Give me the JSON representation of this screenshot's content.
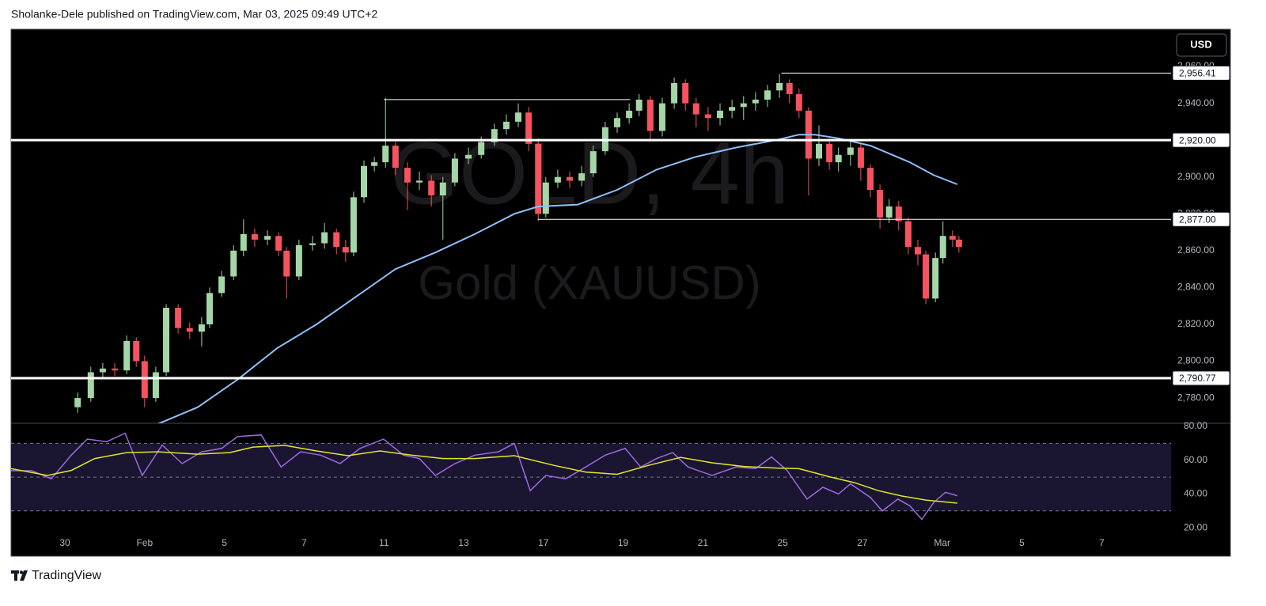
{
  "header": {
    "text": "Sholanke-Dele published on TradingView.com, Mar 03, 2025 09:49 UTC+2"
  },
  "footer": {
    "brand": "TradingView"
  },
  "chart_data": [
    {
      "type": "candlestick",
      "watermark": {
        "title": "GOLD, 4h",
        "subtitle": "Gold (XAUUSD)"
      },
      "currency": "USD",
      "up_color": "#a5d6a7",
      "down_color": "#f7525f",
      "x": [
        0.32,
        0.65,
        0.95,
        1.25,
        1.55,
        1.79,
        2.0,
        2.28,
        2.54,
        2.84,
        3.13,
        3.43,
        3.63,
        3.93,
        4.23,
        4.48,
        4.76,
        5.08,
        5.36,
        5.56,
        5.87,
        6.21,
        6.51,
        6.81,
        7.04,
        7.24,
        7.5,
        7.76,
        8.04,
        8.29,
        8.59,
        8.89,
        9.19,
        9.48,
        9.78,
        10.12,
        10.44,
        10.77,
        11.07,
        11.37,
        11.63,
        11.87,
        12.06,
        12.36,
        12.66,
        12.96,
        13.25,
        13.55,
        13.85,
        14.15,
        14.4,
        14.68,
        14.98,
        15.28,
        15.56,
        15.83,
        16.13,
        16.43,
        16.73,
        17.02,
        17.32,
        17.62,
        17.92,
        18.17,
        18.41,
        18.65,
        18.91,
        19.17,
        19.4,
        19.7,
        19.96,
        20.2,
        20.44,
        20.67,
        20.91,
        21.15,
        21.39,
        21.59,
        21.83,
        22.02,
        22.26,
        22.42
      ],
      "open": [
        2775,
        2780,
        2794,
        2796,
        2795,
        2811,
        2800,
        2780,
        2794,
        2829,
        2818,
        2816,
        2820,
        2837,
        2846,
        2860,
        2869,
        2866,
        2868,
        2860,
        2846,
        2863,
        2864,
        2870,
        2862,
        2859,
        2889,
        2906,
        2908,
        2917,
        2905,
        2897,
        2898,
        2890,
        2897,
        2910,
        2912,
        2919,
        2926,
        2930,
        2935,
        2918,
        2880,
        2897,
        2900,
        2898,
        2902,
        2914,
        2927,
        2932,
        2936,
        2942,
        2925,
        2940,
        2951,
        2940,
        2934,
        2932,
        2936,
        2938,
        2940,
        2942,
        2947,
        2951,
        2945,
        2936,
        2910,
        2918,
        2908,
        2912,
        2916,
        2905,
        2893,
        2878,
        2884,
        2876,
        2862,
        2858,
        2834,
        2856,
        2868,
        2866
      ],
      "high": [
        2783,
        2797,
        2799,
        2799,
        2814,
        2813,
        2803,
        2797,
        2831,
        2831,
        2821,
        2824,
        2840,
        2849,
        2863,
        2877,
        2872,
        2871,
        2870,
        2862,
        2866,
        2868,
        2875,
        2872,
        2866,
        2892,
        2909,
        2911,
        2943,
        2919,
        2908,
        2903,
        2901,
        2900,
        2913,
        2916,
        2922,
        2929,
        2934,
        2940,
        2938,
        2921,
        2900,
        2904,
        2903,
        2906,
        2917,
        2930,
        2935,
        2940,
        2945,
        2944,
        2943,
        2954,
        2953,
        2943,
        2938,
        2940,
        2942,
        2944,
        2946,
        2950,
        2956,
        2953,
        2948,
        2938,
        2928,
        2921,
        2916,
        2919,
        2918,
        2907,
        2896,
        2888,
        2887,
        2878,
        2866,
        2860,
        2859,
        2876,
        2871,
        2868
      ],
      "low": [
        2772,
        2778,
        2791,
        2792,
        2793,
        2797,
        2775,
        2778,
        2792,
        2815,
        2812,
        2808,
        2818,
        2835,
        2844,
        2857,
        2862,
        2863,
        2857,
        2834,
        2844,
        2860,
        2861,
        2858,
        2854,
        2857,
        2886,
        2903,
        2905,
        2901,
        2882,
        2893,
        2884,
        2866,
        2895,
        2907,
        2910,
        2917,
        2923,
        2927,
        2914,
        2876,
        2878,
        2894,
        2894,
        2895,
        2900,
        2912,
        2924,
        2929,
        2933,
        2919,
        2922,
        2937,
        2936,
        2927,
        2925,
        2928,
        2932,
        2931,
        2936,
        2938,
        2943,
        2940,
        2932,
        2890,
        2906,
        2904,
        2903,
        2906,
        2898,
        2889,
        2872,
        2875,
        2871,
        2858,
        2852,
        2831,
        2832,
        2853,
        2862,
        2859
      ],
      "close": [
        2780,
        2794,
        2796,
        2795,
        2811,
        2800,
        2780,
        2794,
        2829,
        2818,
        2816,
        2820,
        2837,
        2846,
        2860,
        2869,
        2866,
        2868,
        2860,
        2846,
        2863,
        2864,
        2870,
        2862,
        2859,
        2889,
        2906,
        2908,
        2917,
        2905,
        2897,
        2898,
        2890,
        2897,
        2910,
        2912,
        2919,
        2926,
        2930,
        2935,
        2918,
        2880,
        2897,
        2900,
        2898,
        2902,
        2914,
        2927,
        2932,
        2936,
        2942,
        2925,
        2940,
        2951,
        2940,
        2934,
        2932,
        2936,
        2938,
        2940,
        2942,
        2947,
        2951,
        2945,
        2936,
        2910,
        2918,
        2908,
        2912,
        2916,
        2905,
        2893,
        2878,
        2884,
        2876,
        2862,
        2858,
        2834,
        2856,
        2868,
        2866,
        2862
      ],
      "overlays": [
        {
          "type": "line",
          "color": "#90bff9",
          "x": [
            2.34,
            3.33,
            4.33,
            5.32,
            6.31,
            7.3,
            8.29,
            9.29,
            10.28,
            11.27,
            11.87,
            12.86,
            13.85,
            14.84,
            15.83,
            16.83,
            17.82,
            18.41,
            18.81,
            19.4,
            20.2,
            21.19,
            21.79,
            22.38
          ],
          "values": [
            2766,
            2775,
            2790,
            2807,
            2820,
            2835,
            2850,
            2859,
            2869,
            2880,
            2884,
            2885,
            2893,
            2904,
            2911,
            2916,
            2920,
            2923,
            2923,
            2921,
            2917,
            2908,
            2901,
            2896
          ]
        }
      ],
      "levels": [
        {
          "value": 2956.41,
          "label": "2,956.41",
          "x_start": 17.97
        },
        {
          "value": 2942,
          "x_start": 8.0,
          "x_end": 14.18
        },
        {
          "value": 2920,
          "label": "2,920.00",
          "thick": true
        },
        {
          "value": 2877,
          "label": "2,877.00",
          "x_start": 11.86
        },
        {
          "value": 2790.77,
          "label": "2,790.77",
          "thick": true
        }
      ],
      "xlim": [
        -1.35,
        27.74
      ],
      "ylim": [
        2766.3,
        2980.2
      ],
      "yticks": [
        {
          "value": 2780,
          "label": "2,780.00"
        },
        {
          "value": 2800,
          "label": "2,800.00"
        },
        {
          "value": 2820,
          "label": "2,820.00"
        },
        {
          "value": 2840,
          "label": "2,840.00"
        },
        {
          "value": 2860,
          "label": "2,860.00"
        },
        {
          "value": 2880,
          "label": "2,880.00"
        },
        {
          "value": 2900,
          "label": "2,900.00"
        },
        {
          "value": 2920,
          "label": "2,920.00"
        },
        {
          "value": 2940,
          "label": "2,940.00"
        },
        {
          "value": 2960,
          "label": "2,960.00"
        }
      ]
    },
    {
      "type": "line",
      "band": [
        30,
        70
      ],
      "band_color": "#1a1530",
      "hlines": [
        70,
        50,
        30
      ],
      "series": [
        {
          "color": "#9c6ade",
          "x": [
            -1.35,
            -0.83,
            -0.34,
            0.16,
            0.56,
            1.05,
            1.51,
            1.94,
            2.44,
            2.94,
            3.43,
            3.93,
            4.33,
            4.92,
            5.42,
            5.91,
            6.41,
            6.9,
            7.4,
            7.99,
            8.49,
            8.89,
            9.29,
            9.78,
            10.28,
            10.87,
            11.27,
            11.67,
            12.06,
            12.56,
            13.06,
            13.55,
            14.05,
            14.44,
            14.84,
            15.24,
            15.63,
            16.23,
            16.83,
            17.32,
            17.72,
            18.11,
            18.61,
            19.01,
            19.4,
            19.7,
            20.2,
            20.5,
            20.89,
            21.19,
            21.49,
            21.79,
            22.08,
            22.38
          ],
          "values": [
            53.8,
            53.8,
            49,
            63,
            72.5,
            71,
            76,
            51,
            69,
            58,
            65,
            67,
            74,
            75,
            56,
            65,
            63,
            58,
            67,
            72.5,
            63,
            61,
            51,
            58,
            63,
            65,
            70,
            42,
            51,
            49,
            56,
            63,
            67,
            56,
            61,
            64.5,
            56,
            51,
            56,
            55,
            62,
            54,
            37,
            44,
            40,
            46,
            38,
            30,
            37,
            33,
            25,
            35,
            41,
            39
          ]
        },
        {
          "color": "#e1e62b",
          "x": [
            -1.35,
            -0.44,
            0.16,
            0.75,
            1.55,
            2.34,
            3.33,
            4.13,
            4.72,
            5.52,
            6.31,
            7.1,
            7.9,
            8.69,
            9.48,
            10.28,
            11.27,
            12.26,
            13.06,
            13.85,
            14.64,
            15.44,
            16.23,
            17.02,
            17.82,
            18.41,
            19.21,
            19.8,
            20.4,
            20.99,
            21.59,
            22.38
          ],
          "values": [
            55,
            51,
            54,
            61,
            64.5,
            65,
            63.6,
            64.5,
            67.8,
            68.8,
            65.5,
            62.7,
            65.5,
            63,
            61,
            61,
            62.7,
            57,
            53,
            51.7,
            57,
            61.7,
            58.5,
            56.3,
            55.4,
            55,
            50,
            46.7,
            42,
            38.8,
            36.4,
            34.6
          ]
        }
      ],
      "xlim": [
        -1.35,
        27.74
      ],
      "xticks": [
        {
          "value": 0,
          "label": "30"
        },
        {
          "value": 2,
          "label": "Feb"
        },
        {
          "value": 4,
          "label": "5"
        },
        {
          "value": 6,
          "label": "7"
        },
        {
          "value": 8,
          "label": "11"
        },
        {
          "value": 10,
          "label": "13"
        },
        {
          "value": 12,
          "label": "17"
        },
        {
          "value": 14,
          "label": "19"
        },
        {
          "value": 16,
          "label": "21"
        },
        {
          "value": 18,
          "label": "25"
        },
        {
          "value": 20,
          "label": "27"
        },
        {
          "value": 22,
          "label": "Mar"
        },
        {
          "value": 24,
          "label": "5"
        },
        {
          "value": 26,
          "label": "7"
        }
      ],
      "ylim": [
        3.2,
        81.9
      ],
      "yticks": [
        {
          "value": 80,
          "label": "80.00"
        },
        {
          "value": 60,
          "label": "60.00"
        },
        {
          "value": 40,
          "label": "40.00"
        },
        {
          "value": 20,
          "label": "20.00"
        }
      ]
    }
  ]
}
